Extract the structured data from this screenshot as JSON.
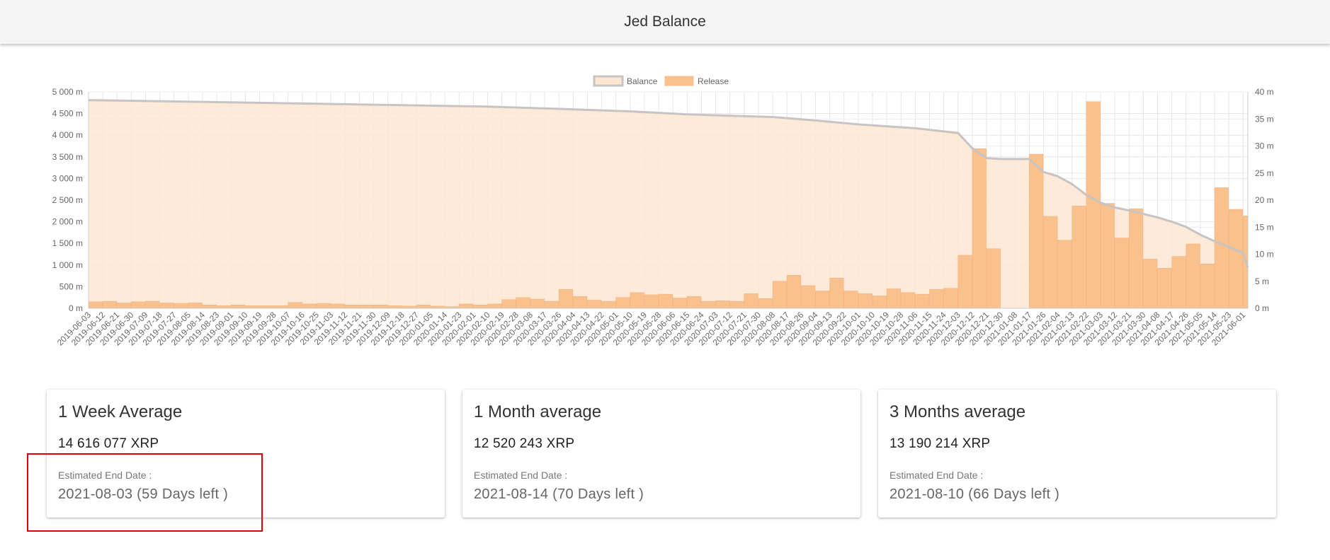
{
  "header": {
    "title": "Jed Balance"
  },
  "chart_data": {
    "type": "bar",
    "title": "",
    "legend": [
      {
        "name": "Balance",
        "color": "#fde6d2",
        "border": "#c9c4c4"
      },
      {
        "name": "Release",
        "color": "#f8c18d",
        "border": "#f8c18d"
      }
    ],
    "legend_position": "top-center",
    "y_left": {
      "range": [
        0,
        5000
      ],
      "ticks": [
        "5 000 m",
        "4 500 m",
        "4 000 m",
        "3 500 m",
        "3 000 m",
        "2 500 m",
        "2 000 m",
        "1 500 m",
        "1 000 m",
        "500 m",
        "0 m"
      ]
    },
    "y_right": {
      "range": [
        0,
        40
      ],
      "ticks": [
        "40 m",
        "35 m",
        "30 m",
        "25 m",
        "20 m",
        "15 m",
        "10 m",
        "5 m",
        "0 m"
      ]
    },
    "x_tick_labels": [
      "2019-06-03",
      "2019-06-12",
      "2019-06-21",
      "2019-06-30",
      "2019-07-09",
      "2019-07-18",
      "2019-07-27",
      "2019-08-05",
      "2019-08-14",
      "2019-08-23",
      "2019-09-01",
      "2019-09-10",
      "2019-09-19",
      "2019-09-28",
      "2019-10-07",
      "2019-10-16",
      "2019-10-25",
      "2019-11-03",
      "2019-11-12",
      "2019-11-21",
      "2019-11-30",
      "2019-12-09",
      "2019-12-18",
      "2019-12-27",
      "2020-01-05",
      "2020-01-14",
      "2020-01-23",
      "2020-02-01",
      "2020-02-10",
      "2020-02-19",
      "2020-02-28",
      "2020-03-08",
      "2020-03-17",
      "2020-03-26",
      "2020-04-04",
      "2020-04-13",
      "2020-04-22",
      "2020-05-01",
      "2020-05-10",
      "2020-05-19",
      "2020-05-28",
      "2020-06-06",
      "2020-06-15",
      "2020-06-24",
      "2020-07-03",
      "2020-07-12",
      "2020-07-21",
      "2020-07-30",
      "2020-08-08",
      "2020-08-17",
      "2020-08-26",
      "2020-09-04",
      "2020-09-13",
      "2020-09-22",
      "2020-10-01",
      "2020-10-10",
      "2020-10-19",
      "2020-10-28",
      "2020-11-06",
      "2020-11-15",
      "2020-11-24",
      "2020-12-03",
      "2020-12-12",
      "2020-12-21",
      "2020-12-30",
      "2021-01-08",
      "2021-01-17",
      "2021-01-26",
      "2021-02-04",
      "2021-02-13",
      "2021-02-22",
      "2021-03-03",
      "2021-03-12",
      "2021-03-21",
      "2021-03-30",
      "2021-04-08",
      "2021-04-17",
      "2021-04-26",
      "2021-05-05",
      "2021-05-14",
      "2021-05-23",
      "2021-06-01"
    ],
    "balance_series": {
      "name": "Balance",
      "unit": "million XRP",
      "points": [
        [
          "2019-06-03",
          4810
        ],
        [
          "2019-09-01",
          4760
        ],
        [
          "2019-12-09",
          4700
        ],
        [
          "2020-02-10",
          4660
        ],
        [
          "2020-03-17",
          4620
        ],
        [
          "2020-05-10",
          4550
        ],
        [
          "2020-06-15",
          4480
        ],
        [
          "2020-08-08",
          4420
        ],
        [
          "2020-09-04",
          4340
        ],
        [
          "2020-10-01",
          4250
        ],
        [
          "2020-11-06",
          4160
        ],
        [
          "2020-12-03",
          4050
        ],
        [
          "2020-12-12",
          3700
        ],
        [
          "2020-12-21",
          3470
        ],
        [
          "2020-12-30",
          3450
        ],
        [
          "2021-01-17",
          3450
        ],
        [
          "2021-01-26",
          3150
        ],
        [
          "2021-02-04",
          3050
        ],
        [
          "2021-02-13",
          2870
        ],
        [
          "2021-02-22",
          2620
        ],
        [
          "2021-03-03",
          2440
        ],
        [
          "2021-03-12",
          2330
        ],
        [
          "2021-03-21",
          2260
        ],
        [
          "2021-03-30",
          2180
        ],
        [
          "2021-04-08",
          2100
        ],
        [
          "2021-04-17",
          2000
        ],
        [
          "2021-04-26",
          1880
        ],
        [
          "2021-05-05",
          1700
        ],
        [
          "2021-05-14",
          1550
        ],
        [
          "2021-05-23",
          1420
        ],
        [
          "2021-06-01",
          1280
        ],
        [
          "2021-06-04",
          940
        ]
      ]
    },
    "release_series": {
      "name": "Release",
      "unit": "million XRP per day",
      "segments": [
        [
          "2019-06-03",
          1.2
        ],
        [
          "2019-06-12",
          1.3
        ],
        [
          "2019-06-21",
          1.0
        ],
        [
          "2019-06-30",
          1.2
        ],
        [
          "2019-07-09",
          1.3
        ],
        [
          "2019-07-18",
          1.0
        ],
        [
          "2019-07-27",
          0.9
        ],
        [
          "2019-08-05",
          1.0
        ],
        [
          "2019-08-14",
          0.6
        ],
        [
          "2019-08-23",
          0.5
        ],
        [
          "2019-09-01",
          0.6
        ],
        [
          "2019-09-10",
          0.5
        ],
        [
          "2019-09-19",
          0.5
        ],
        [
          "2019-09-28",
          0.5
        ],
        [
          "2019-10-07",
          1.1
        ],
        [
          "2019-10-16",
          0.8
        ],
        [
          "2019-10-25",
          0.9
        ],
        [
          "2019-11-03",
          0.8
        ],
        [
          "2019-11-12",
          0.6
        ],
        [
          "2019-11-21",
          0.6
        ],
        [
          "2019-11-30",
          0.6
        ],
        [
          "2019-12-09",
          0.5
        ],
        [
          "2019-12-18",
          0.4
        ],
        [
          "2019-12-27",
          0.6
        ],
        [
          "2020-01-05",
          0.4
        ],
        [
          "2020-01-14",
          0.3
        ],
        [
          "2020-01-23",
          0.8
        ],
        [
          "2020-02-01",
          0.6
        ],
        [
          "2020-02-10",
          0.8
        ],
        [
          "2020-02-19",
          1.6
        ],
        [
          "2020-02-28",
          2.0
        ],
        [
          "2020-03-08",
          1.7
        ],
        [
          "2020-03-17",
          1.3
        ],
        [
          "2020-03-26",
          3.5
        ],
        [
          "2020-04-04",
          2.2
        ],
        [
          "2020-04-13",
          1.5
        ],
        [
          "2020-04-22",
          1.3
        ],
        [
          "2020-05-01",
          2.0
        ],
        [
          "2020-05-10",
          2.9
        ],
        [
          "2020-05-19",
          2.5
        ],
        [
          "2020-05-28",
          2.6
        ],
        [
          "2020-06-06",
          1.9
        ],
        [
          "2020-06-15",
          2.2
        ],
        [
          "2020-06-24",
          1.3
        ],
        [
          "2020-07-03",
          1.4
        ],
        [
          "2020-07-12",
          1.3
        ],
        [
          "2020-07-21",
          2.7
        ],
        [
          "2020-07-30",
          1.8
        ],
        [
          "2020-08-08",
          5.0
        ],
        [
          "2020-08-17",
          6.1
        ],
        [
          "2020-08-26",
          4.2
        ],
        [
          "2020-09-04",
          3.2
        ],
        [
          "2020-09-13",
          5.6
        ],
        [
          "2020-09-22",
          3.2
        ],
        [
          "2020-10-01",
          2.7
        ],
        [
          "2020-10-10",
          2.3
        ],
        [
          "2020-10-19",
          3.6
        ],
        [
          "2020-10-28",
          2.9
        ],
        [
          "2020-11-06",
          2.6
        ],
        [
          "2020-11-15",
          3.5
        ],
        [
          "2020-11-24",
          3.7
        ],
        [
          "2020-12-03",
          9.8
        ],
        [
          "2020-12-12",
          29.5
        ],
        [
          "2020-12-21",
          11.0
        ],
        [
          "2020-12-30",
          0
        ],
        [
          "2021-01-08",
          0
        ],
        [
          "2021-01-17",
          28.5
        ],
        [
          "2021-01-26",
          17.0
        ],
        [
          "2021-02-04",
          12.6
        ],
        [
          "2021-02-13",
          18.9
        ],
        [
          "2021-02-22",
          38.2
        ],
        [
          "2021-03-03",
          19.4
        ],
        [
          "2021-03-12",
          13.0
        ],
        [
          "2021-03-21",
          18.4
        ],
        [
          "2021-03-30",
          9.1
        ],
        [
          "2021-04-08",
          7.4
        ],
        [
          "2021-04-17",
          9.6
        ],
        [
          "2021-04-26",
          11.9
        ],
        [
          "2021-05-05",
          8.2
        ],
        [
          "2021-05-14",
          22.3
        ],
        [
          "2021-05-23",
          18.3
        ],
        [
          "2021-06-01",
          17.1
        ]
      ]
    }
  },
  "cards": [
    {
      "title": "1 Week Average",
      "value": "14 616 077 XRP",
      "end_label": "Estimated End Date :",
      "end_date": "2021-08-03 (59 Days left )"
    },
    {
      "title": "1 Month average",
      "value": "12 520 243 XRP",
      "end_label": "Estimated End Date :",
      "end_date": "2021-08-14 (70 Days left )"
    },
    {
      "title": "3 Months average",
      "value": "13 190 214 XRP",
      "end_label": "Estimated End Date :",
      "end_date": "2021-08-10 (66 Days left )"
    }
  ],
  "annotation": {
    "color": "#e00000"
  }
}
